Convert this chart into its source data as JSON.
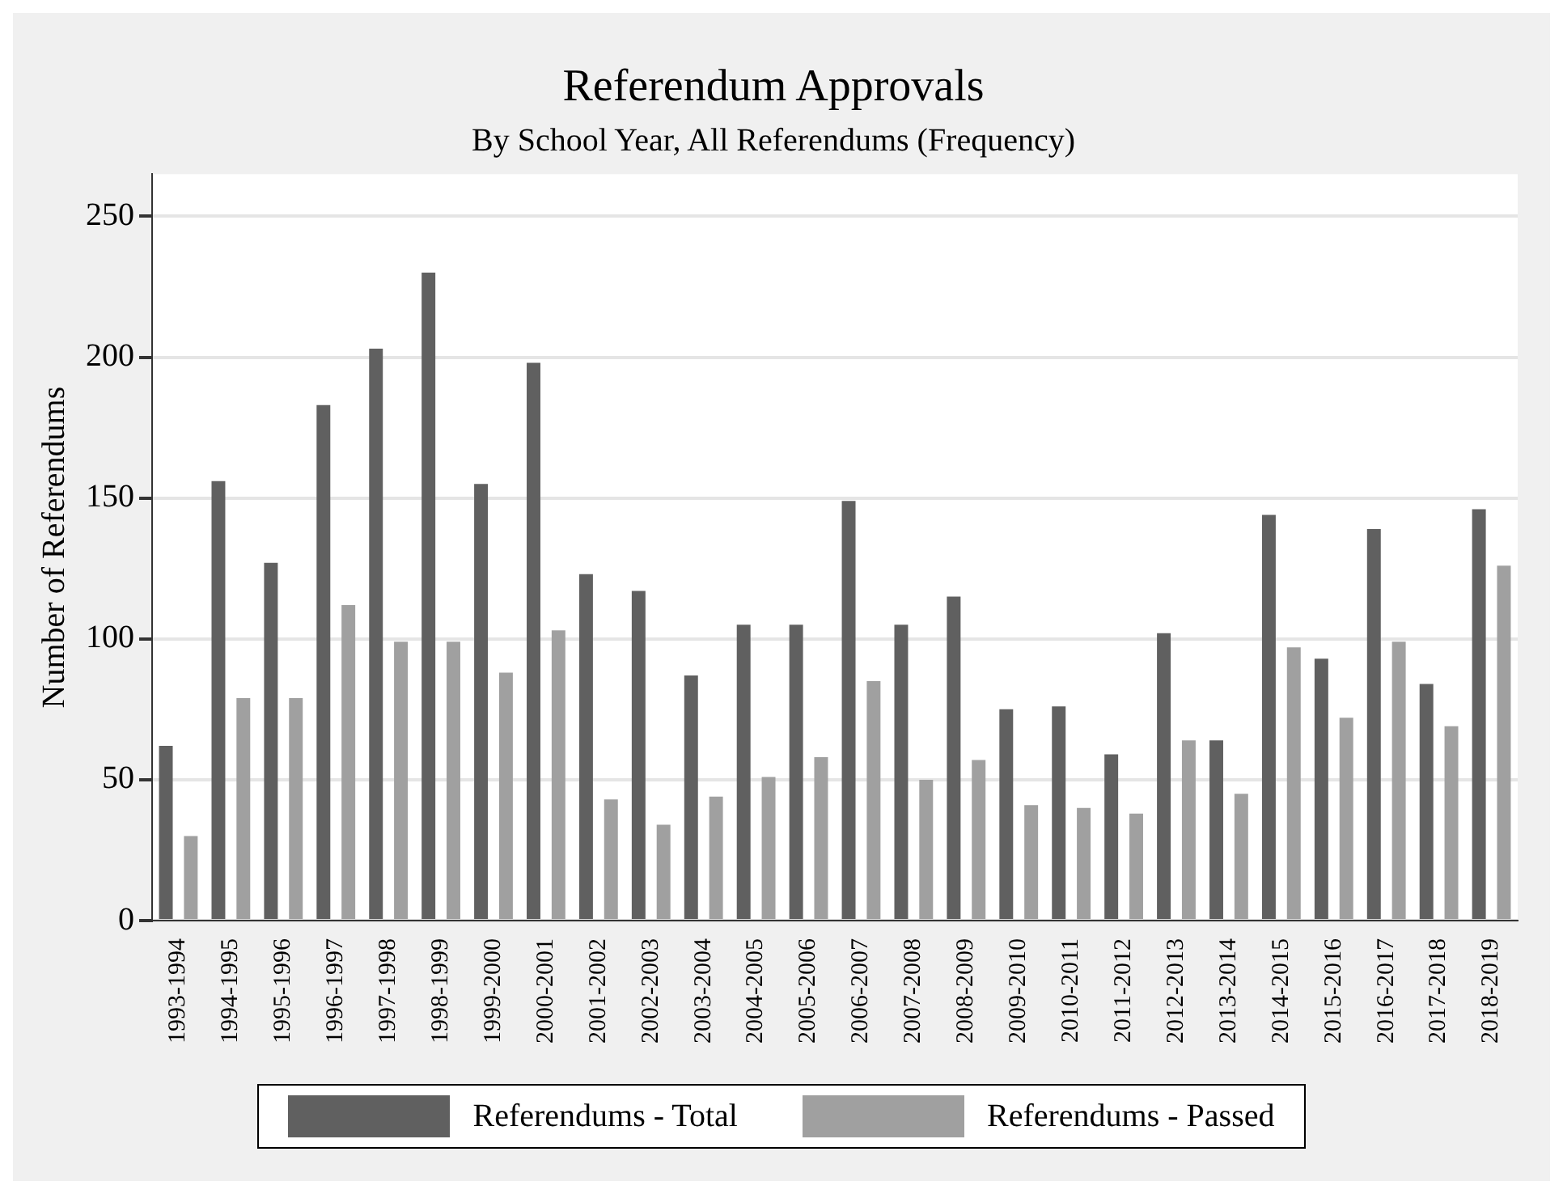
{
  "chart_data": {
    "type": "bar",
    "title": "Referendum Approvals",
    "subtitle": "By School Year, All Referendums (Frequency)",
    "ylabel": "Number of Referendums",
    "categories": [
      "1993-1994",
      "1994-1995",
      "1995-1996",
      "1996-1997",
      "1997-1998",
      "1998-1999",
      "1999-2000",
      "2000-2001",
      "2001-2002",
      "2002-2003",
      "2003-2004",
      "2004-2005",
      "2005-2006",
      "2006-2007",
      "2007-2008",
      "2008-2009",
      "2009-2010",
      "2010-2011",
      "2011-2012",
      "2012-2013",
      "2013-2014",
      "2014-2015",
      "2015-2016",
      "2016-2017",
      "2017-2018",
      "2018-2019"
    ],
    "series": [
      {
        "name": "Referendums - Total",
        "color": "#606060",
        "values": [
          62,
          156,
          127,
          183,
          203,
          230,
          155,
          198,
          123,
          117,
          87,
          105,
          105,
          149,
          105,
          115,
          75,
          76,
          59,
          102,
          64,
          144,
          93,
          139,
          84,
          146
        ]
      },
      {
        "name": "Referendums - Passed",
        "color": "#a0a0a0",
        "values": [
          30,
          79,
          79,
          112,
          99,
          99,
          88,
          103,
          43,
          34,
          44,
          51,
          58,
          85,
          50,
          57,
          41,
          40,
          38,
          64,
          45,
          97,
          72,
          99,
          69,
          126
        ]
      }
    ],
    "ylim": [
      0,
      265
    ],
    "yticks": [
      0,
      50,
      100,
      150,
      200,
      250
    ],
    "grid": "y",
    "legend": "bottom"
  }
}
